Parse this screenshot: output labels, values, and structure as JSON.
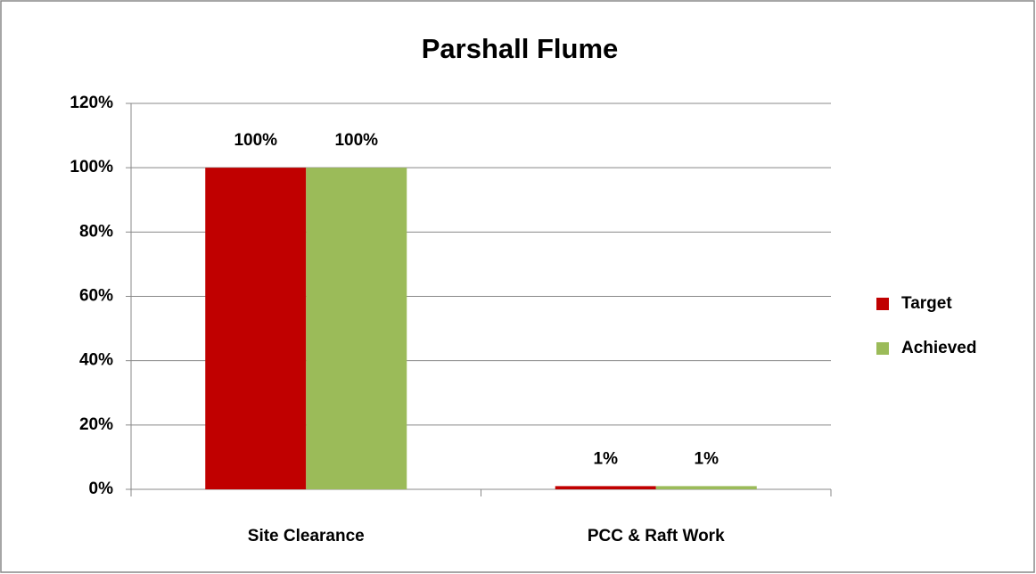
{
  "chart_data": {
    "type": "bar",
    "title": "Parshall Flume",
    "categories": [
      "Site Clearance",
      "PCC & Raft Work"
    ],
    "series": [
      {
        "name": "Target",
        "color": "#c00000",
        "values": [
          100,
          1
        ],
        "value_labels": [
          "100%",
          "1%"
        ]
      },
      {
        "name": "Achieved",
        "color": "#9bbb59",
        "values": [
          100,
          1
        ],
        "value_labels": [
          "100%",
          "1%"
        ]
      }
    ],
    "ylim": [
      0,
      120
    ],
    "yticks": [
      {
        "value": 0,
        "label": "0%"
      },
      {
        "value": 20,
        "label": "20%"
      },
      {
        "value": 40,
        "label": "40%"
      },
      {
        "value": 60,
        "label": "60%"
      },
      {
        "value": 80,
        "label": "80%"
      },
      {
        "value": 100,
        "label": "100%"
      },
      {
        "value": 120,
        "label": "120%"
      }
    ],
    "grid": true,
    "legend": "right"
  }
}
